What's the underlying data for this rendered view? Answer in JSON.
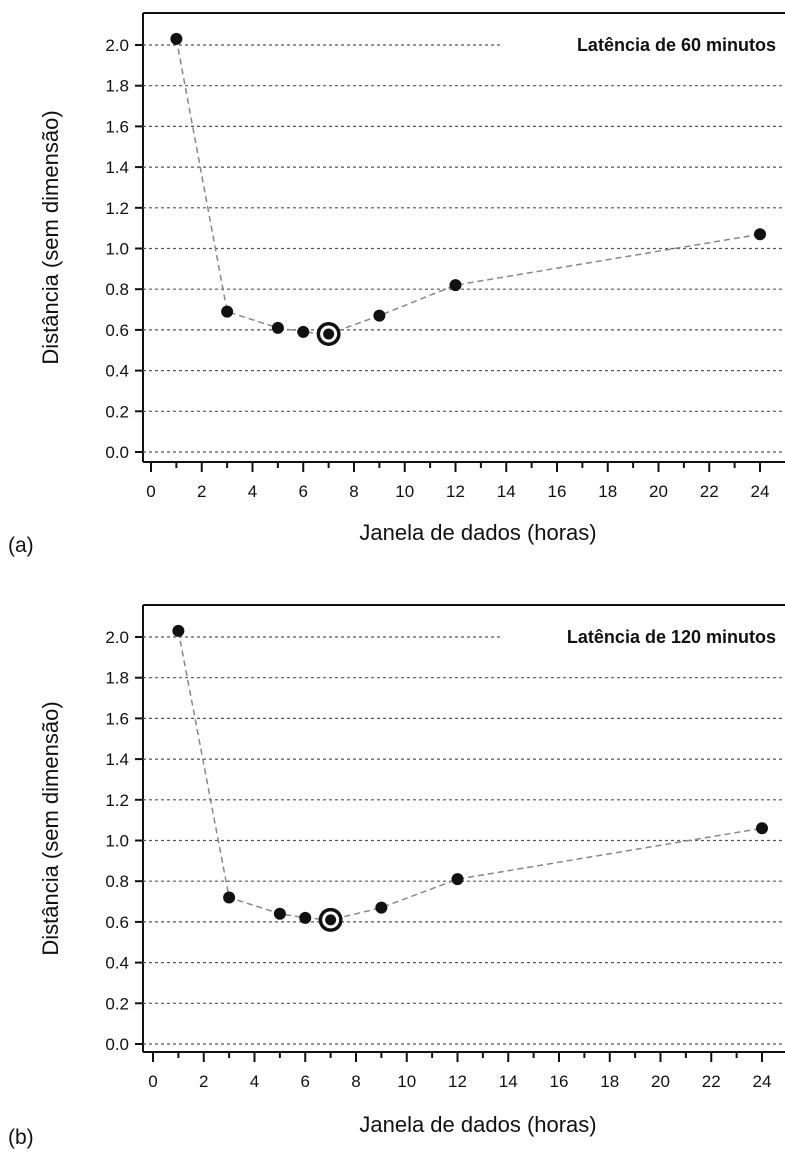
{
  "chart_data": [
    {
      "type": "scatter",
      "panel_label": "(a)",
      "annotation": "Latência de 60 minutos",
      "xlabel": "Janela de dados (horas)",
      "ylabel": "Distância (sem dimensão)",
      "xlim": [
        -0.6,
        25
      ],
      "ylim": [
        -0.05,
        2.15
      ],
      "xticks": [
        "0",
        "2",
        "4",
        "6",
        "8",
        "10",
        "12",
        "14",
        "16",
        "18",
        "20",
        "22",
        "24"
      ],
      "yticks": [
        "0.0",
        "0.2",
        "0.4",
        "0.6",
        "0.8",
        "1.0",
        "1.2",
        "1.4",
        "1.6",
        "1.8",
        "2.0"
      ],
      "grid": true,
      "connector": "dashed",
      "highlighted_x": 7,
      "x": [
        1,
        3,
        5,
        6,
        7,
        9,
        12,
        24
      ],
      "y": [
        2.03,
        0.69,
        0.61,
        0.59,
        0.58,
        0.67,
        0.82,
        1.07
      ]
    },
    {
      "type": "scatter",
      "panel_label": "(b)",
      "annotation": "Latência de 120 minutos",
      "xlabel": "Janela de dados (horas)",
      "ylabel": "Distância (sem dimensão)",
      "xlim": [
        -0.6,
        25
      ],
      "ylim": [
        -0.05,
        2.15
      ],
      "xticks": [
        "0",
        "2",
        "4",
        "6",
        "8",
        "10",
        "12",
        "14",
        "16",
        "18",
        "20",
        "22",
        "24"
      ],
      "yticks": [
        "0.0",
        "0.2",
        "0.4",
        "0.6",
        "0.8",
        "1.0",
        "1.2",
        "1.4",
        "1.6",
        "1.8",
        "2.0"
      ],
      "grid": true,
      "connector": "dashed",
      "highlighted_x": 7,
      "x": [
        1,
        3,
        5,
        6,
        7,
        9,
        12,
        24
      ],
      "y": [
        2.03,
        0.72,
        0.64,
        0.62,
        0.61,
        0.67,
        0.81,
        1.06
      ]
    }
  ]
}
